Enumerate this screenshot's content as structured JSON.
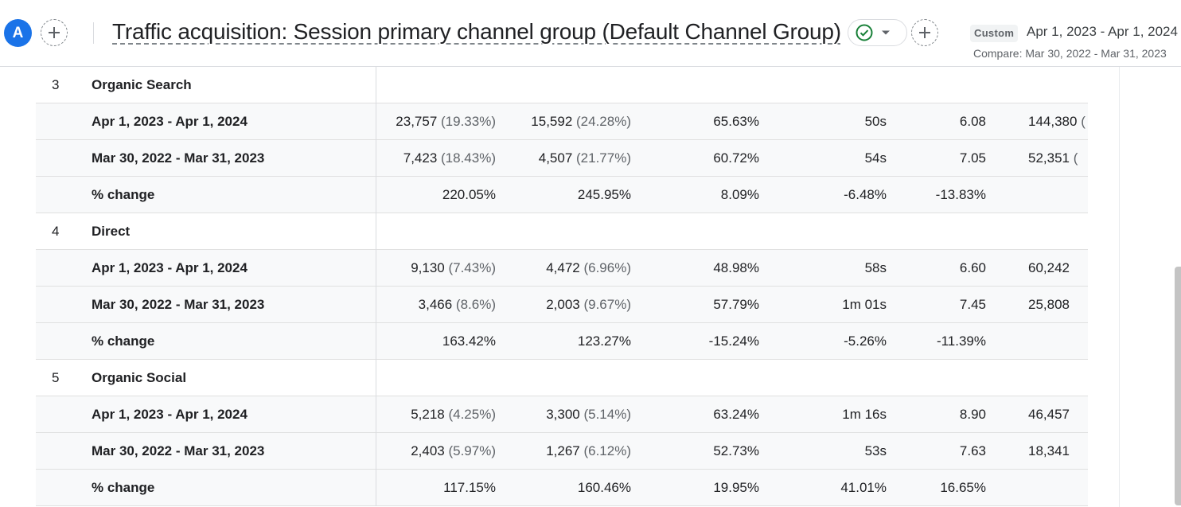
{
  "header": {
    "avatar_letter": "A",
    "title": "Traffic acquisition: Session primary channel group (Default Channel Group)",
    "status_icon": "check-circle-icon",
    "custom_label": "Custom",
    "date_range": "Apr 1, 2023 - Apr 1, 2024",
    "compare_range": "Compare: Mar 30, 2022 - Mar 31, 2023"
  },
  "colors": {
    "accent": "#1a73e8",
    "success": "#188038",
    "row_shade": "#f8f9fa"
  },
  "table": {
    "groups": [
      {
        "rank": "3",
        "channel": "Organic Search",
        "rows": [
          {
            "label": "Apr 1, 2023 - Apr 1, 2024",
            "c1": "23,757",
            "c1_pct": "(19.33%)",
            "c2": "15,592",
            "c2_pct": "(24.28%)",
            "c3": "65.63%",
            "c4": "50s",
            "c5": "6.08",
            "c6": "144,380",
            "c6_pct": "("
          },
          {
            "label": "Mar 30, 2022 - Mar 31, 2023",
            "c1": "7,423",
            "c1_pct": "(18.43%)",
            "c2": "4,507",
            "c2_pct": "(21.77%)",
            "c3": "60.72%",
            "c4": "54s",
            "c5": "7.05",
            "c6": "52,351",
            "c6_pct": "("
          },
          {
            "label": "% change",
            "c1": "220.05%",
            "c1_pct": "",
            "c2": "245.95%",
            "c2_pct": "",
            "c3": "8.09%",
            "c4": "-6.48%",
            "c5": "-13.83%",
            "c6": "",
            "c6_pct": ""
          }
        ]
      },
      {
        "rank": "4",
        "channel": "Direct",
        "rows": [
          {
            "label": "Apr 1, 2023 - Apr 1, 2024",
            "c1": "9,130",
            "c1_pct": "(7.43%)",
            "c2": "4,472",
            "c2_pct": "(6.96%)",
            "c3": "48.98%",
            "c4": "58s",
            "c5": "6.60",
            "c6": "60,242",
            "c6_pct": ""
          },
          {
            "label": "Mar 30, 2022 - Mar 31, 2023",
            "c1": "3,466",
            "c1_pct": "(8.6%)",
            "c2": "2,003",
            "c2_pct": "(9.67%)",
            "c3": "57.79%",
            "c4": "1m 01s",
            "c5": "7.45",
            "c6": "25,808",
            "c6_pct": ""
          },
          {
            "label": "% change",
            "c1": "163.42%",
            "c1_pct": "",
            "c2": "123.27%",
            "c2_pct": "",
            "c3": "-15.24%",
            "c4": "-5.26%",
            "c5": "-11.39%",
            "c6": "",
            "c6_pct": ""
          }
        ]
      },
      {
        "rank": "5",
        "channel": "Organic Social",
        "rows": [
          {
            "label": "Apr 1, 2023 - Apr 1, 2024",
            "c1": "5,218",
            "c1_pct": "(4.25%)",
            "c2": "3,300",
            "c2_pct": "(5.14%)",
            "c3": "63.24%",
            "c4": "1m 16s",
            "c5": "8.90",
            "c6": "46,457",
            "c6_pct": ""
          },
          {
            "label": "Mar 30, 2022 - Mar 31, 2023",
            "c1": "2,403",
            "c1_pct": "(5.97%)",
            "c2": "1,267",
            "c2_pct": "(6.12%)",
            "c3": "52.73%",
            "c4": "53s",
            "c5": "7.63",
            "c6": "18,341",
            "c6_pct": ""
          },
          {
            "label": "% change",
            "c1": "117.15%",
            "c1_pct": "",
            "c2": "160.46%",
            "c2_pct": "",
            "c3": "19.95%",
            "c4": "41.01%",
            "c5": "16.65%",
            "c6": "",
            "c6_pct": ""
          }
        ]
      }
    ]
  }
}
